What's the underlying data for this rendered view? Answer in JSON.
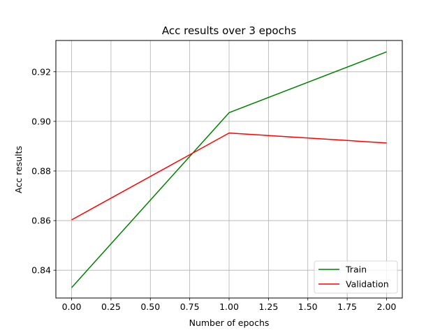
{
  "chart_data": {
    "type": "line",
    "title": "Acc results over 3 epochs",
    "xlabel": "Number of epochs",
    "ylabel": "Acc results",
    "x": [
      0.0,
      1.0,
      2.0
    ],
    "series": [
      {
        "name": "Train",
        "values": [
          0.833,
          0.9035,
          0.928
        ],
        "color": "#008000"
      },
      {
        "name": "Validation",
        "values": [
          0.8603,
          0.8953,
          0.8913
        ],
        "color": "#ff0000"
      }
    ],
    "xlim": [
      -0.1,
      2.1
    ],
    "ylim": [
      0.8288,
      0.9326
    ],
    "xticks": [
      "0.00",
      "0.25",
      "0.50",
      "0.75",
      "1.00",
      "1.25",
      "1.50",
      "1.75",
      "2.00"
    ],
    "xtick_values": [
      0,
      0.25,
      0.5,
      0.75,
      1.0,
      1.25,
      1.5,
      1.75,
      2.0
    ],
    "yticks": [
      "0.84",
      "0.86",
      "0.88",
      "0.90",
      "0.92"
    ],
    "ytick_values": [
      0.84,
      0.86,
      0.88,
      0.9,
      0.92
    ],
    "grid": true,
    "legend_position": "lower-right"
  }
}
